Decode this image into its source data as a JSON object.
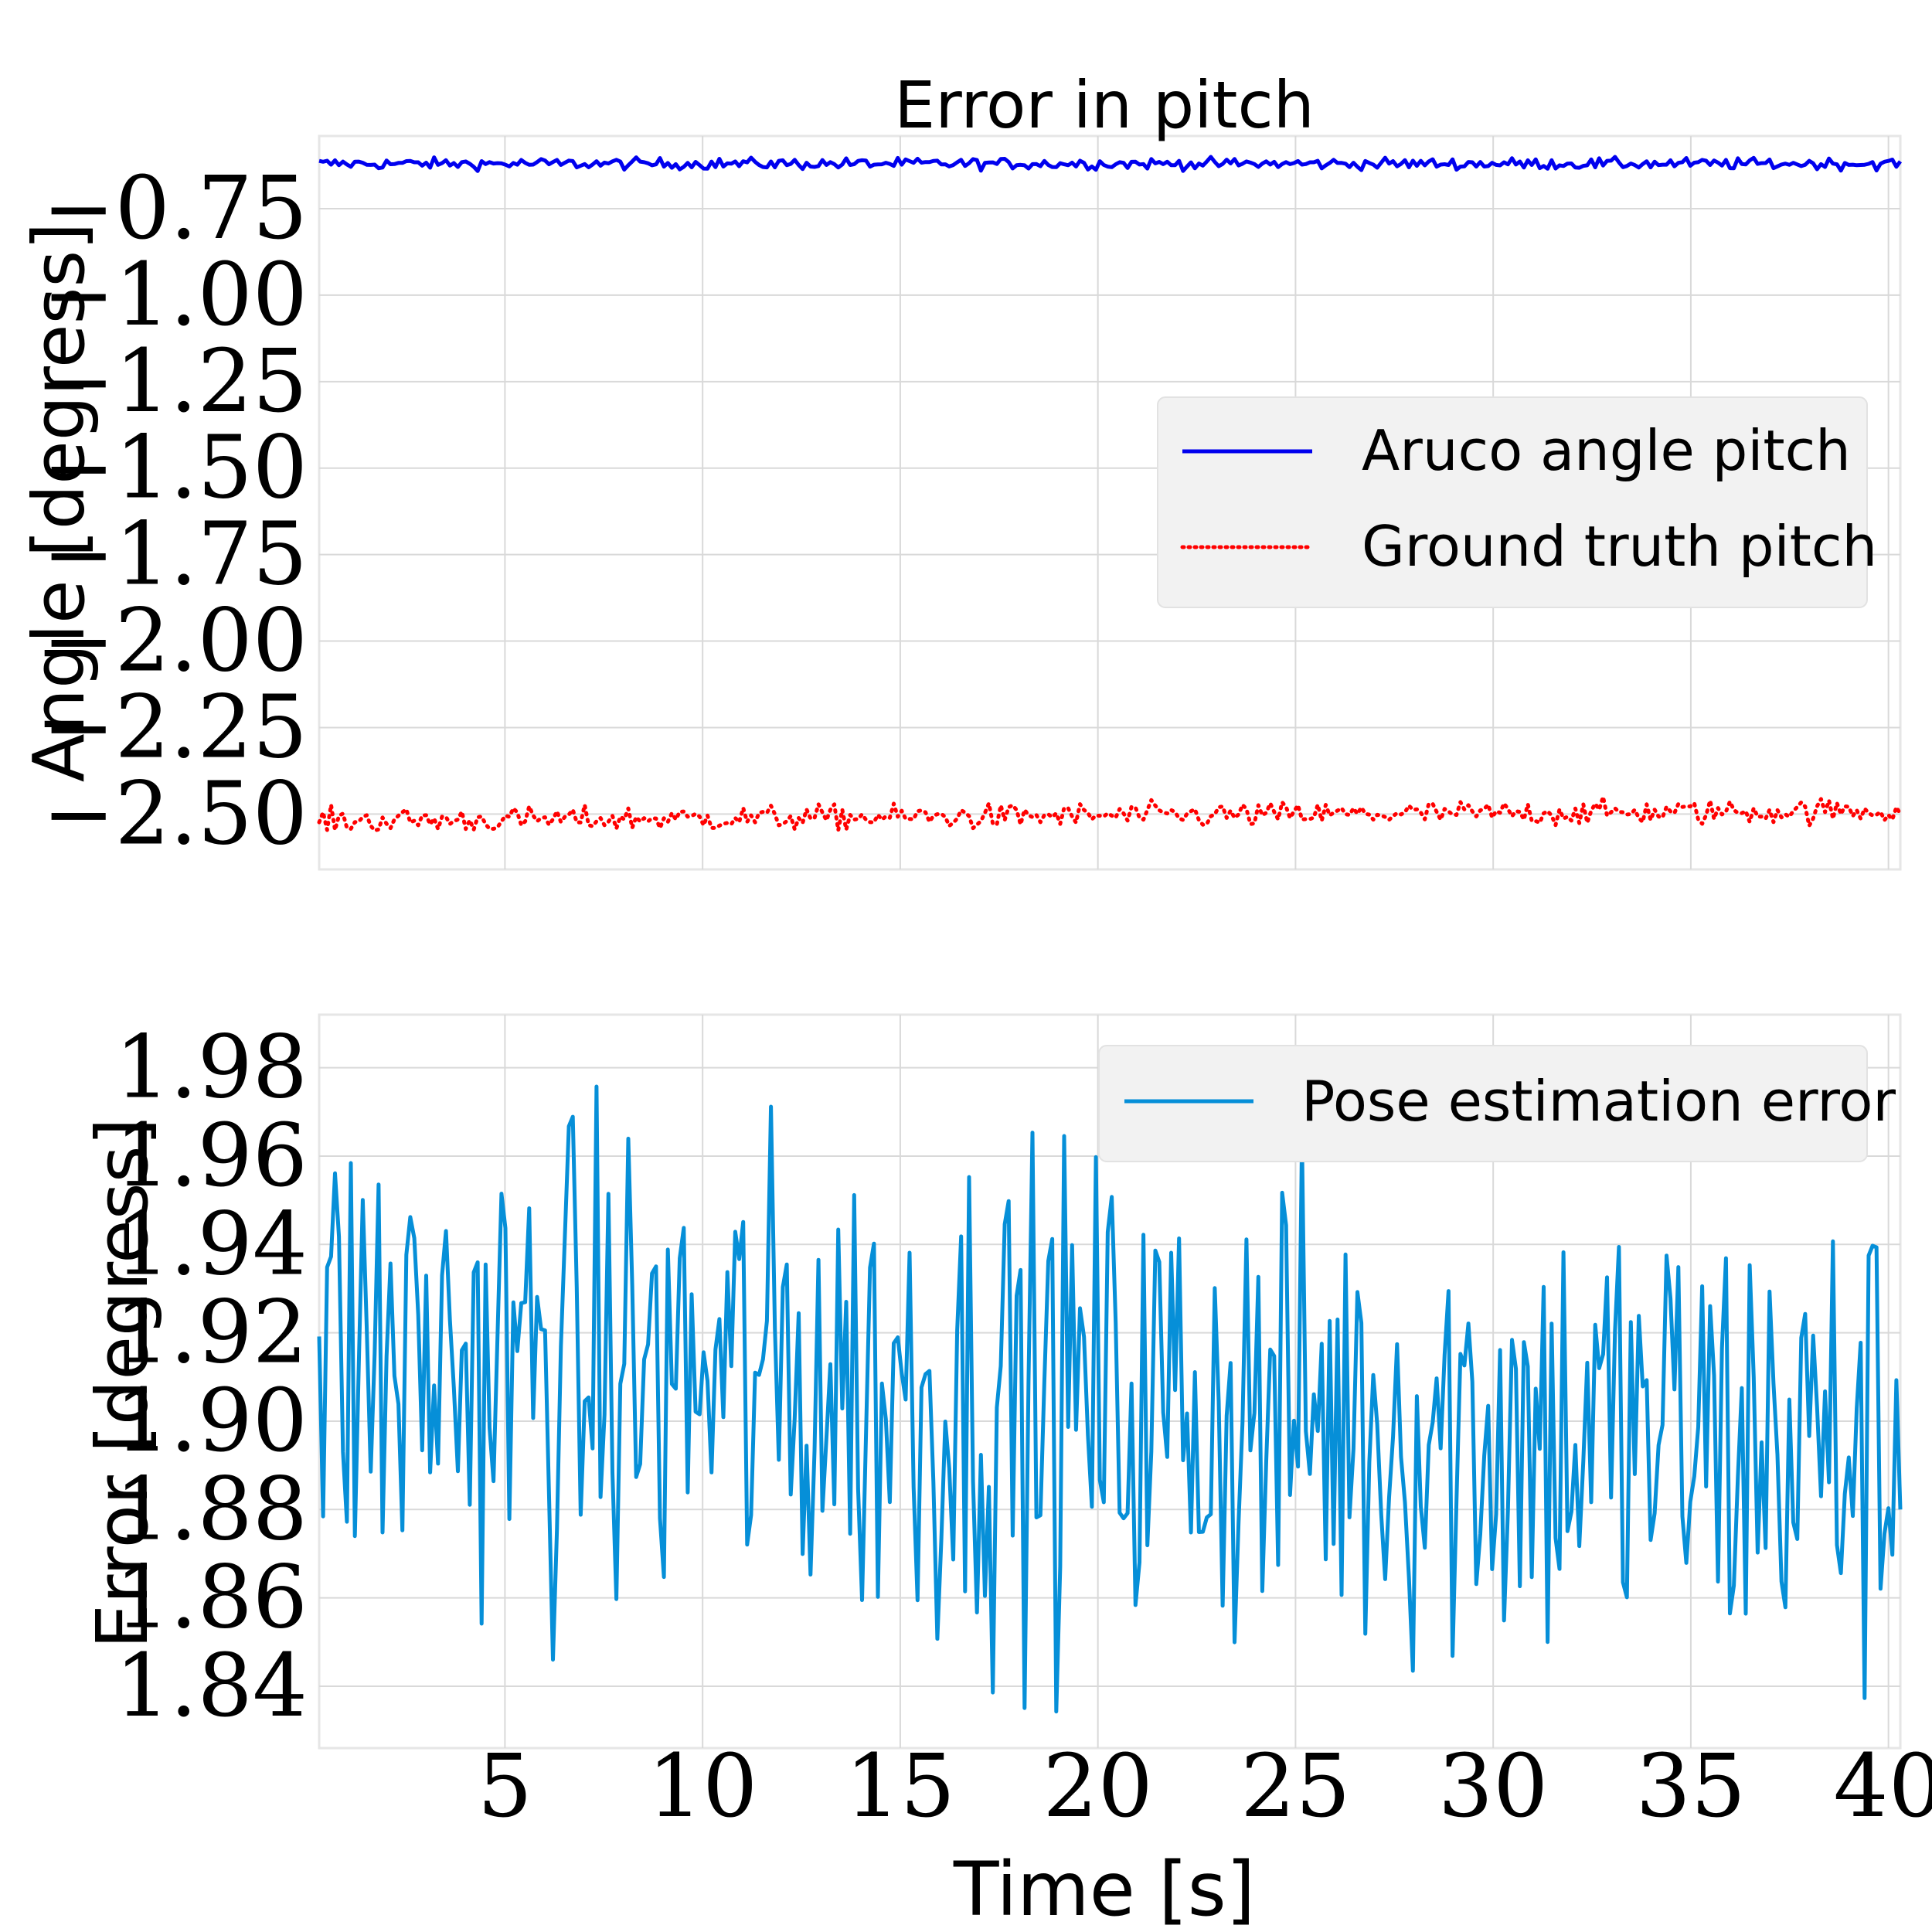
{
  "chart_data": [
    {
      "type": "line",
      "title": "Error in pitch",
      "xlabel": "",
      "ylabel": "Angle [degress]",
      "xlim": [
        0.3,
        40.3
      ],
      "ylim": [
        -2.66,
        -0.54
      ],
      "yticks": [
        -0.75,
        -1.0,
        -1.25,
        -1.5,
        -1.75,
        -2.0,
        -2.25,
        -2.5
      ],
      "ytick_labels": [
        "−0.75",
        "−1.00",
        "−1.25",
        "−1.50",
        "−1.75",
        "−2.00",
        "−2.25",
        "−2.50"
      ],
      "xticks": [
        5,
        10,
        15,
        20,
        25,
        30,
        35,
        40
      ],
      "grid": true,
      "legend": "center-right",
      "series": [
        {
          "name": "Aruco angle pitch",
          "color": "#0000ee",
          "style": "solid",
          "mean": -0.62,
          "noise": 0.008,
          "approx_points": 400
        },
        {
          "name": "Ground truth pitch",
          "color": "#ff0000",
          "style": "dotted",
          "start": -2.52,
          "end": -2.49,
          "noise": 0.018,
          "approx_points": 400
        }
      ]
    },
    {
      "type": "line",
      "title": "",
      "xlabel": "Time [s]",
      "ylabel": "Error [degress]",
      "xlim": [
        0.3,
        40.3
      ],
      "ylim": [
        1.826,
        1.992
      ],
      "yticks": [
        1.84,
        1.86,
        1.88,
        1.9,
        1.92,
        1.94,
        1.96,
        1.98
      ],
      "ytick_labels": [
        "1.84",
        "1.86",
        "1.88",
        "1.90",
        "1.92",
        "1.94",
        "1.96",
        "1.98"
      ],
      "xticks": [
        5,
        10,
        15,
        20,
        25,
        30,
        35,
        40
      ],
      "xtick_labels": [
        "5",
        "10",
        "15",
        "20",
        "25",
        "30",
        "35",
        "40"
      ],
      "grid": true,
      "legend": "top-right",
      "series": [
        {
          "name": "Pose estimation error",
          "color": "#068fd8",
          "style": "solid",
          "start_mean": 1.915,
          "end_mean": 1.893,
          "noise": 0.028,
          "approx_points": 400,
          "min": 1.831,
          "max": 1.984
        }
      ]
    }
  ]
}
